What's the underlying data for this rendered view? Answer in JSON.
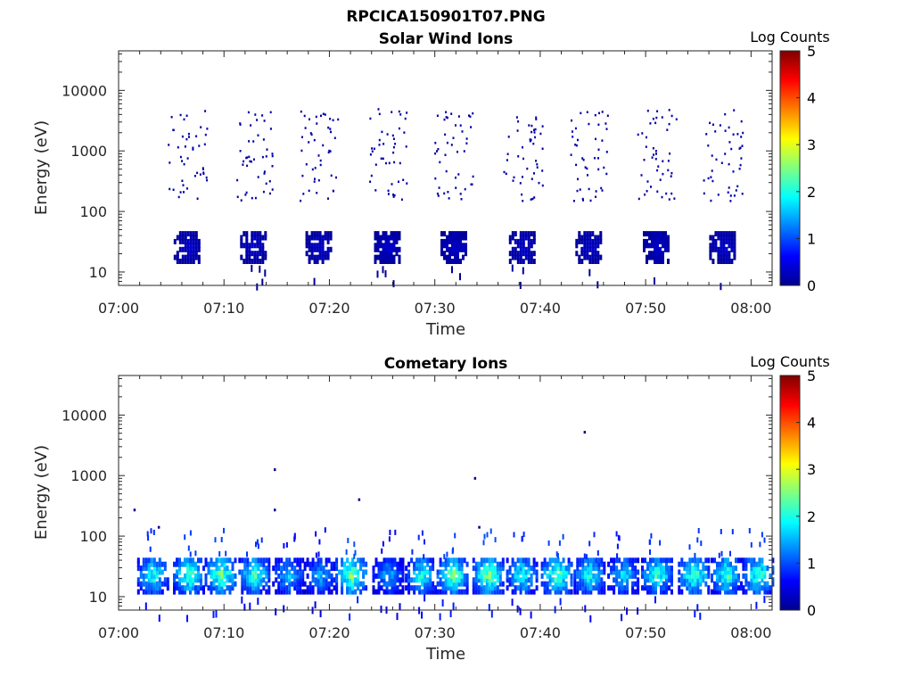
{
  "figure": {
    "title": "RPCICA150901T07.PNG"
  },
  "chart_data": [
    {
      "type": "heatmap",
      "title": "Solar Wind Ions",
      "xlabel": "Time",
      "ylabel": "Energy (eV)",
      "x_range": [
        "07:00",
        "08:02"
      ],
      "x_ticks": [
        "07:00",
        "07:10",
        "07:20",
        "07:30",
        "07:40",
        "07:50",
        "08:00"
      ],
      "y_scale": "log",
      "y_range": [
        6,
        45000
      ],
      "y_ticks": [
        "10",
        "100",
        "1000",
        "10000"
      ],
      "colorbar": {
        "label": "Log Counts",
        "range": [
          0,
          5
        ],
        "ticks": [
          "0",
          "1",
          "2",
          "3",
          "4",
          "5"
        ],
        "colormap": "jet"
      },
      "bursts": [
        {
          "t": 6.5,
          "count_level": 0.3,
          "core_energy_ev": [
            15,
            45
          ],
          "scatter_energy_ev": [
            150,
            5000
          ]
        },
        {
          "t": 12.8,
          "count_level": 0.3,
          "core_energy_ev": [
            15,
            45
          ],
          "scatter_energy_ev": [
            150,
            5000
          ]
        },
        {
          "t": 19.0,
          "count_level": 0.3,
          "core_energy_ev": [
            15,
            45
          ],
          "scatter_energy_ev": [
            150,
            5000
          ]
        },
        {
          "t": 25.5,
          "count_level": 0.3,
          "core_energy_ev": [
            15,
            45
          ],
          "scatter_energy_ev": [
            150,
            5000
          ]
        },
        {
          "t": 31.8,
          "count_level": 0.3,
          "core_energy_ev": [
            15,
            45
          ],
          "scatter_energy_ev": [
            150,
            5000
          ]
        },
        {
          "t": 38.3,
          "count_level": 0.3,
          "core_energy_ev": [
            15,
            45
          ],
          "scatter_energy_ev": [
            150,
            5000
          ]
        },
        {
          "t": 44.6,
          "count_level": 0.3,
          "core_energy_ev": [
            15,
            45
          ],
          "scatter_energy_ev": [
            150,
            5000
          ]
        },
        {
          "t": 51.0,
          "count_level": 0.3,
          "core_energy_ev": [
            15,
            45
          ],
          "scatter_energy_ev": [
            150,
            5000
          ]
        },
        {
          "t": 57.3,
          "count_level": 0.3,
          "core_energy_ev": [
            15,
            45
          ],
          "scatter_energy_ev": [
            150,
            5000
          ]
        }
      ]
    },
    {
      "type": "heatmap",
      "title": "Cometary Ions",
      "xlabel": "Time",
      "ylabel": "Energy (eV)",
      "x_range": [
        "07:00",
        "08:02"
      ],
      "x_ticks": [
        "07:00",
        "07:10",
        "07:20",
        "07:30",
        "07:40",
        "07:50",
        "08:00"
      ],
      "y_scale": "log",
      "y_range": [
        6,
        45000
      ],
      "y_ticks": [
        "10",
        "100",
        "1000",
        "10000"
      ],
      "colorbar": {
        "label": "Log Counts",
        "range": [
          0,
          5
        ],
        "ticks": [
          "0",
          "1",
          "2",
          "3",
          "4",
          "5"
        ],
        "colormap": "jet"
      },
      "bursts": [
        {
          "t": 3.2,
          "count_level": 1.6,
          "core_energy_ev": [
            12,
            45
          ]
        },
        {
          "t": 6.6,
          "count_level": 1.8,
          "core_energy_ev": [
            12,
            45
          ]
        },
        {
          "t": 9.6,
          "count_level": 1.9,
          "core_energy_ev": [
            12,
            45
          ]
        },
        {
          "t": 12.8,
          "count_level": 1.7,
          "core_energy_ev": [
            12,
            45
          ]
        },
        {
          "t": 16.0,
          "count_level": 1.3,
          "core_energy_ev": [
            12,
            45
          ]
        },
        {
          "t": 19.0,
          "count_level": 1.2,
          "core_energy_ev": [
            12,
            45
          ]
        },
        {
          "t": 22.0,
          "count_level": 2.0,
          "core_energy_ev": [
            12,
            45
          ]
        },
        {
          "t": 25.5,
          "count_level": 1.2,
          "core_energy_ev": [
            12,
            45
          ]
        },
        {
          "t": 28.6,
          "count_level": 1.6,
          "core_energy_ev": [
            12,
            45
          ]
        },
        {
          "t": 31.6,
          "count_level": 1.9,
          "core_energy_ev": [
            12,
            45
          ]
        },
        {
          "t": 35.0,
          "count_level": 2.0,
          "core_energy_ev": [
            12,
            45
          ]
        },
        {
          "t": 38.2,
          "count_level": 1.6,
          "core_energy_ev": [
            12,
            45
          ]
        },
        {
          "t": 41.5,
          "count_level": 1.9,
          "core_energy_ev": [
            12,
            45
          ]
        },
        {
          "t": 44.6,
          "count_level": 1.6,
          "core_energy_ev": [
            12,
            45
          ]
        },
        {
          "t": 47.8,
          "count_level": 1.4,
          "core_energy_ev": [
            12,
            45
          ]
        },
        {
          "t": 51.0,
          "count_level": 1.7,
          "core_energy_ev": [
            12,
            45
          ]
        },
        {
          "t": 54.5,
          "count_level": 1.8,
          "core_energy_ev": [
            12,
            45
          ]
        },
        {
          "t": 57.6,
          "count_level": 1.7,
          "core_energy_ev": [
            12,
            45
          ]
        },
        {
          "t": 60.6,
          "count_level": 1.8,
          "core_energy_ev": [
            12,
            45
          ]
        }
      ],
      "isolated_points": [
        {
          "t": 1.5,
          "energy_ev": 270
        },
        {
          "t": 3.8,
          "energy_ev": 140
        },
        {
          "t": 14.8,
          "energy_ev": 1250
        },
        {
          "t": 14.8,
          "energy_ev": 270
        },
        {
          "t": 22.8,
          "energy_ev": 400
        },
        {
          "t": 33.8,
          "energy_ev": 900
        },
        {
          "t": 34.2,
          "energy_ev": 140
        },
        {
          "t": 44.2,
          "energy_ev": 5200
        }
      ]
    }
  ]
}
